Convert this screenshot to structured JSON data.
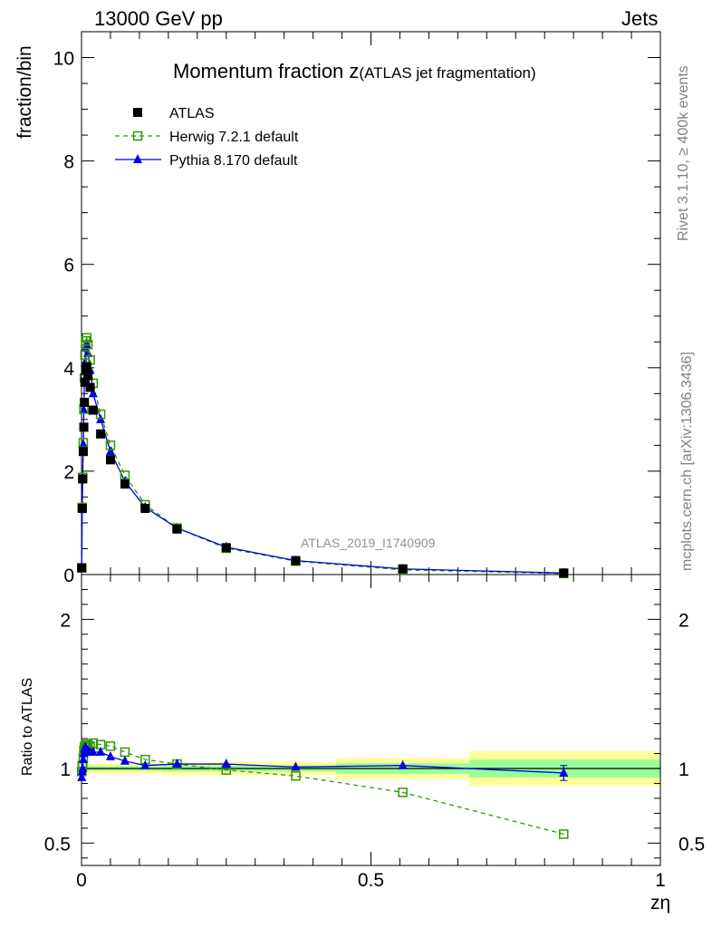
{
  "header": {
    "left": "13000 GeV pp",
    "right": "Jets"
  },
  "side_labels": {
    "rivet": "Rivet 3.1.10, ≥ 400k events",
    "mcplots": "mcplots.cern.ch [arXiv:1306.3436]"
  },
  "chart_data": [
    {
      "type": "scatter",
      "panel": "main",
      "title": "Momentum fraction z",
      "subtitle": "(ATLAS jet fragmentation)",
      "ylabel": "fraction/bin",
      "xlabel": "zη",
      "xlim": [
        0,
        1
      ],
      "ylim": [
        0,
        10.5
      ],
      "yticks": [
        0,
        2,
        4,
        6,
        8,
        10
      ],
      "xticks": [
        0,
        0.5,
        1
      ],
      "analysis_tag": "ATLAS_2019_I1740909",
      "legend": [
        "ATLAS",
        "Herwig 7.2.1 default",
        "Pythia 8.170 default"
      ],
      "x": [
        0.0004,
        0.0012,
        0.002,
        0.003,
        0.004,
        0.005,
        0.006,
        0.007,
        0.009,
        0.011,
        0.015,
        0.02,
        0.033,
        0.05,
        0.075,
        0.11,
        0.165,
        0.25,
        0.37,
        0.555,
        0.833
      ],
      "series": [
        {
          "name": "ATLAS",
          "color": "#000000",
          "marker": "filled-square",
          "values": [
            0.13,
            1.28,
            1.85,
            2.38,
            2.85,
            3.33,
            3.72,
            3.95,
            4.02,
            3.85,
            3.62,
            3.18,
            2.72,
            2.22,
            1.75,
            1.28,
            0.88,
            0.52,
            0.27,
            0.11,
            0.03
          ]
        },
        {
          "name": "Herwig 7.2.1 default",
          "color": "#339900",
          "marker": "open-square",
          "line": "dashed",
          "values": [
            0.13,
            1.3,
            1.88,
            2.55,
            3.2,
            3.8,
            4.25,
            4.52,
            4.58,
            4.45,
            4.15,
            3.7,
            3.1,
            2.5,
            1.92,
            1.35,
            0.9,
            0.51,
            0.26,
            0.09,
            0.02
          ]
        },
        {
          "name": "Pythia 8.170 default",
          "color": "#0000e6",
          "marker": "filled-triangle",
          "line": "solid",
          "values": [
            0.13,
            1.26,
            1.85,
            2.52,
            3.18,
            3.72,
            4.1,
            4.38,
            4.45,
            4.28,
            3.95,
            3.5,
            3.0,
            2.38,
            1.8,
            1.3,
            0.9,
            0.53,
            0.27,
            0.11,
            0.03
          ]
        }
      ]
    },
    {
      "type": "scatter",
      "panel": "ratio",
      "ylabel": "Ratio to ATLAS",
      "xlabel": "zη",
      "xlim": [
        0,
        1
      ],
      "ylim": [
        0.35,
        2.3
      ],
      "yticks": [
        0.5,
        1,
        2
      ],
      "ytick_labels": [
        "0.5",
        "1",
        "2"
      ],
      "xticks": [
        0,
        0.5,
        1
      ],
      "xtick_labels": [
        "0",
        "0.5",
        "1"
      ],
      "bands": [
        {
          "x0": 0.0,
          "x1": 0.03,
          "inner": [
            0.985,
            1.015
          ],
          "outer": [
            0.97,
            1.03
          ]
        },
        {
          "x0": 0.03,
          "x1": 0.14,
          "inner": [
            0.985,
            1.015
          ],
          "outer": [
            0.965,
            1.035
          ]
        },
        {
          "x0": 0.14,
          "x1": 0.44,
          "inner": [
            0.98,
            1.02
          ],
          "outer": [
            0.955,
            1.045
          ]
        },
        {
          "x0": 0.44,
          "x1": 0.67,
          "inner": [
            0.965,
            1.035
          ],
          "outer": [
            0.93,
            1.07
          ]
        },
        {
          "x0": 0.67,
          "x1": 1.0,
          "inner": [
            0.94,
            1.06
          ],
          "outer": [
            0.885,
            1.115
          ]
        }
      ],
      "x": [
        0.0004,
        0.0012,
        0.002,
        0.003,
        0.004,
        0.005,
        0.006,
        0.007,
        0.009,
        0.011,
        0.015,
        0.02,
        0.033,
        0.05,
        0.075,
        0.11,
        0.165,
        0.25,
        0.37,
        0.555,
        0.833
      ],
      "series": [
        {
          "name": "Herwig 7.2.1 default",
          "color": "#339900",
          "marker": "open-square",
          "line": "dashed",
          "values": [
            0.98,
            1.02,
            1.02,
            1.07,
            1.12,
            1.14,
            1.15,
            1.16,
            1.16,
            1.16,
            1.15,
            1.17,
            1.16,
            1.15,
            1.11,
            1.06,
            1.03,
            0.99,
            0.95,
            0.84,
            0.56
          ]
        },
        {
          "name": "Pythia 8.170 default",
          "color": "#0000e6",
          "marker": "filled-triangle",
          "line": "solid",
          "values": [
            0.94,
            0.98,
            1.0,
            1.06,
            1.1,
            1.13,
            1.14,
            1.14,
            1.13,
            1.12,
            1.11,
            1.11,
            1.11,
            1.08,
            1.05,
            1.02,
            1.03,
            1.03,
            1.01,
            1.02,
            0.97
          ],
          "error_last": 0.05
        }
      ]
    }
  ]
}
